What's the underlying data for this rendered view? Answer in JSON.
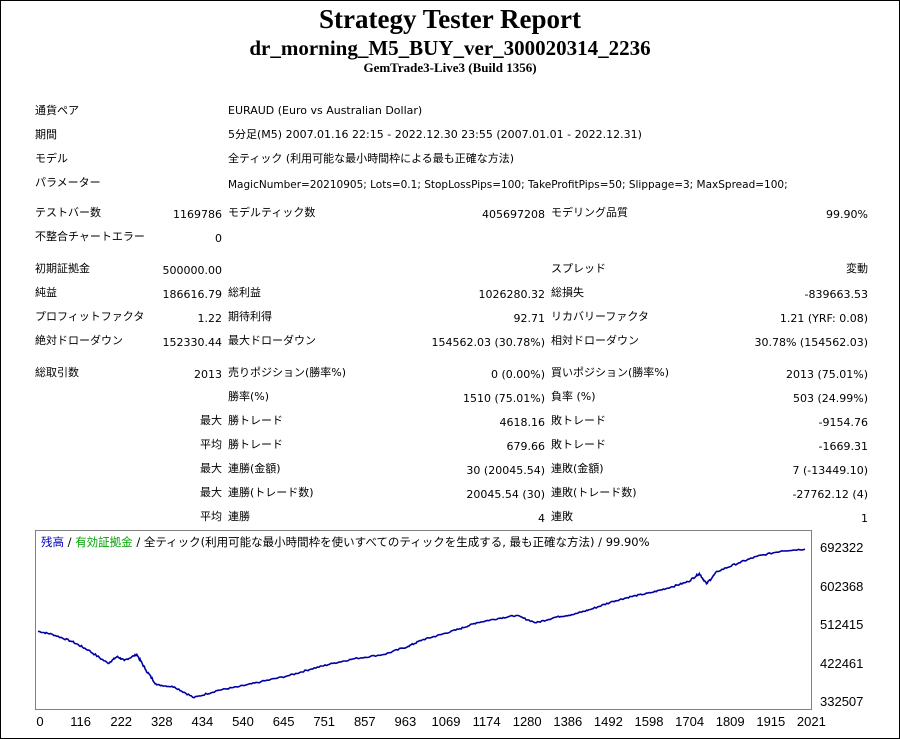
{
  "report": {
    "title": "Strategy Tester Report",
    "ea_name": "dr_morning_M5_BUY_ver_300020314_2236",
    "server": "GemTrade3-Live3 (Build 1356)"
  },
  "settings": {
    "symbol_label": "通貨ペア",
    "symbol_value": "EURAUD (Euro vs Australian Dollar)",
    "period_label": "期間",
    "period_value": "5分足(M5) 2007.01.16 22:15 - 2022.12.30 23:55 (2007.01.01 - 2022.12.31)",
    "model_label": "モデル",
    "model_value": "全ティック (利用可能な最小時間枠による最も正確な方法)",
    "params_label": "パラメーター",
    "params_value": "MagicNumber=20210905; Lots=0.1; StopLossPips=100; TakeProfitPips=50; Slippage=3; MaxSpread=100;"
  },
  "stats": {
    "bars_label": "テストバー数",
    "bars_value": "1169786",
    "ticks_label": "モデルティック数",
    "ticks_value": "405697208",
    "quality_label": "モデリング品質",
    "quality_value": "99.90%",
    "mismatch_label": "不整合チャートエラー",
    "mismatch_value": "0",
    "deposit_label": "初期証拠金",
    "deposit_value": "500000.00",
    "spread_label": "スプレッド",
    "spread_value": "変動",
    "net_label": "純益",
    "net_value": "186616.79",
    "gross_profit_label": "総利益",
    "gross_profit_value": "1026280.32",
    "gross_loss_label": "総損失",
    "gross_loss_value": "-839663.53",
    "pf_label": "プロフィットファクタ",
    "pf_value": "1.22",
    "payoff_label": "期待利得",
    "payoff_value": "92.71",
    "rf_label": "リカバリーファクタ",
    "rf_value": "1.21 (YRF: 0.08)",
    "abs_dd_label": "絶対ドローダウン",
    "abs_dd_value": "152330.44",
    "max_dd_label": "最大ドローダウン",
    "max_dd_value": "154562.03 (30.78%)",
    "rel_dd_label": "相対ドローダウン",
    "rel_dd_value": "30.78% (154562.03)",
    "trades_label": "総取引数",
    "trades_value": "2013",
    "short_label": "売りポジション(勝率%)",
    "short_value": "0 (0.00%)",
    "long_label": "買いポジション(勝率%)",
    "long_value": "2013 (75.01%)",
    "win_label": "勝率(%)",
    "win_value": "1510 (75.01%)",
    "loss_label": "負率 (%)",
    "loss_value": "503 (24.99%)",
    "largest_label": "最大",
    "largest_win_label": "勝トレード",
    "largest_win_value": "4618.16",
    "largest_loss_label": "敗トレード",
    "largest_loss_value": "-9154.76",
    "avg_label": "平均",
    "avg_win_label": "勝トレード",
    "avg_win_value": "679.66",
    "avg_loss_label": "敗トレード",
    "avg_loss_value": "-1669.31",
    "mc_label": "最大",
    "mc_win_label": "連勝(金額)",
    "mc_win_value": "30 (20045.54)",
    "mc_loss_label": "連敗(金額)",
    "mc_loss_value": "7 (-13449.10)",
    "mp_label": "最大",
    "mp_win_label": "連勝(トレード数)",
    "mp_win_value": "20045.54 (30)",
    "mp_loss_label": "連敗(トレード数)",
    "mp_loss_value": "-27762.12 (4)",
    "ac_label": "平均",
    "ac_win_label": "連勝",
    "ac_win_value": "4",
    "ac_loss_label": "連敗",
    "ac_loss_value": "1"
  },
  "legend": {
    "balance": "残高",
    "sep1": " / ",
    "equity": "有効証拠金",
    "rest": " / 全ティック(利用可能な最小時間枠を使いすべてのティックを生成する, 最も正確な方法) / 99.90%"
  },
  "chart_data": {
    "type": "line",
    "title": "",
    "xlabel": "",
    "ylabel": "",
    "x_ticks": [
      "0",
      "116",
      "222",
      "328",
      "434",
      "540",
      "645",
      "751",
      "857",
      "963",
      "1069",
      "1174",
      "1280",
      "1386",
      "1492",
      "1598",
      "1704",
      "1809",
      "1915",
      "2021"
    ],
    "y_ticks": [
      "692322",
      "602368",
      "512415",
      "422461",
      "332507"
    ],
    "xlim": [
      0,
      2134
    ],
    "ylim": [
      332507,
      692322
    ],
    "series": [
      {
        "name": "残高",
        "color": "#0000a0",
        "x": [
          0,
          40,
          95,
          140,
          195,
          220,
          240,
          275,
          300,
          330,
          380,
          434,
          500,
          560,
          620,
          700,
          760,
          820,
          880,
          963,
          1030,
          1069,
          1120,
          1174,
          1220,
          1280,
          1330,
          1386,
          1440,
          1492,
          1540,
          1600,
          1650,
          1704,
          1760,
          1809,
          1840,
          1860,
          1890,
          1950,
          2000,
          2070,
          2134
        ],
        "y": [
          500000,
          493000,
          476000,
          456000,
          425000,
          441000,
          432000,
          446000,
          410000,
          375000,
          370000,
          345000,
          362000,
          371000,
          382000,
          397000,
          412000,
          425000,
          436000,
          446000,
          465000,
          480000,
          492000,
          506000,
          520000,
          530000,
          537000,
          520000,
          533000,
          540000,
          552000,
          570000,
          581000,
          590000,
          603000,
          616000,
          635000,
          611000,
          640000,
          660000,
          675000,
          688000,
          692000
        ]
      }
    ]
  },
  "colors": {
    "balance": "#0000c0",
    "equity": "#00a000",
    "line": "#0000a0"
  }
}
